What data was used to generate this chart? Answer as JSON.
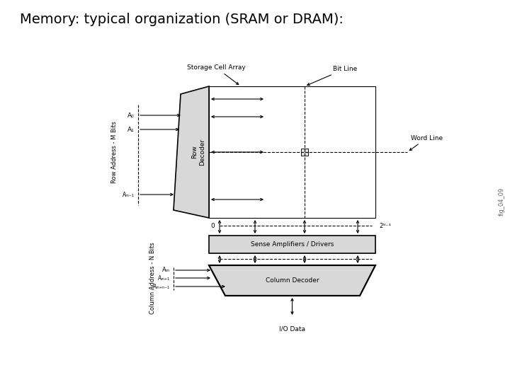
{
  "title": "Memory: typical organization (SRAM or DRAM):",
  "title_fontsize": 14,
  "bg_color": "#ffffff",
  "line_color": "#000000",
  "gray_fill": "#c0c0c0",
  "light_gray_fill": "#d8d8d8",
  "fig_label": "fig_04_09",
  "labels": {
    "storage_cell_array": "Storage Cell Array",
    "bit_line": "Bit Line",
    "word_line": "Word Line",
    "row_decoder": "Row Decoder",
    "row_address": "Row Address - M Bits",
    "a0": "A₀",
    "a1": "A₁",
    "am1": "Aₘ₋₁",
    "sense_amp": "Sense Amplifiers / Drivers",
    "col_decoder": "Column Decoder",
    "col_address": "Column Address - N Bits",
    "am": "Aₘ",
    "am_plus1": "Aₘ₊₁",
    "am_plus_n1": "Aₘ₊ₙ₋₁",
    "io_data": "I/O Data",
    "zero_label": "0",
    "two_n1_label": "2ᴺ⁻¹"
  }
}
